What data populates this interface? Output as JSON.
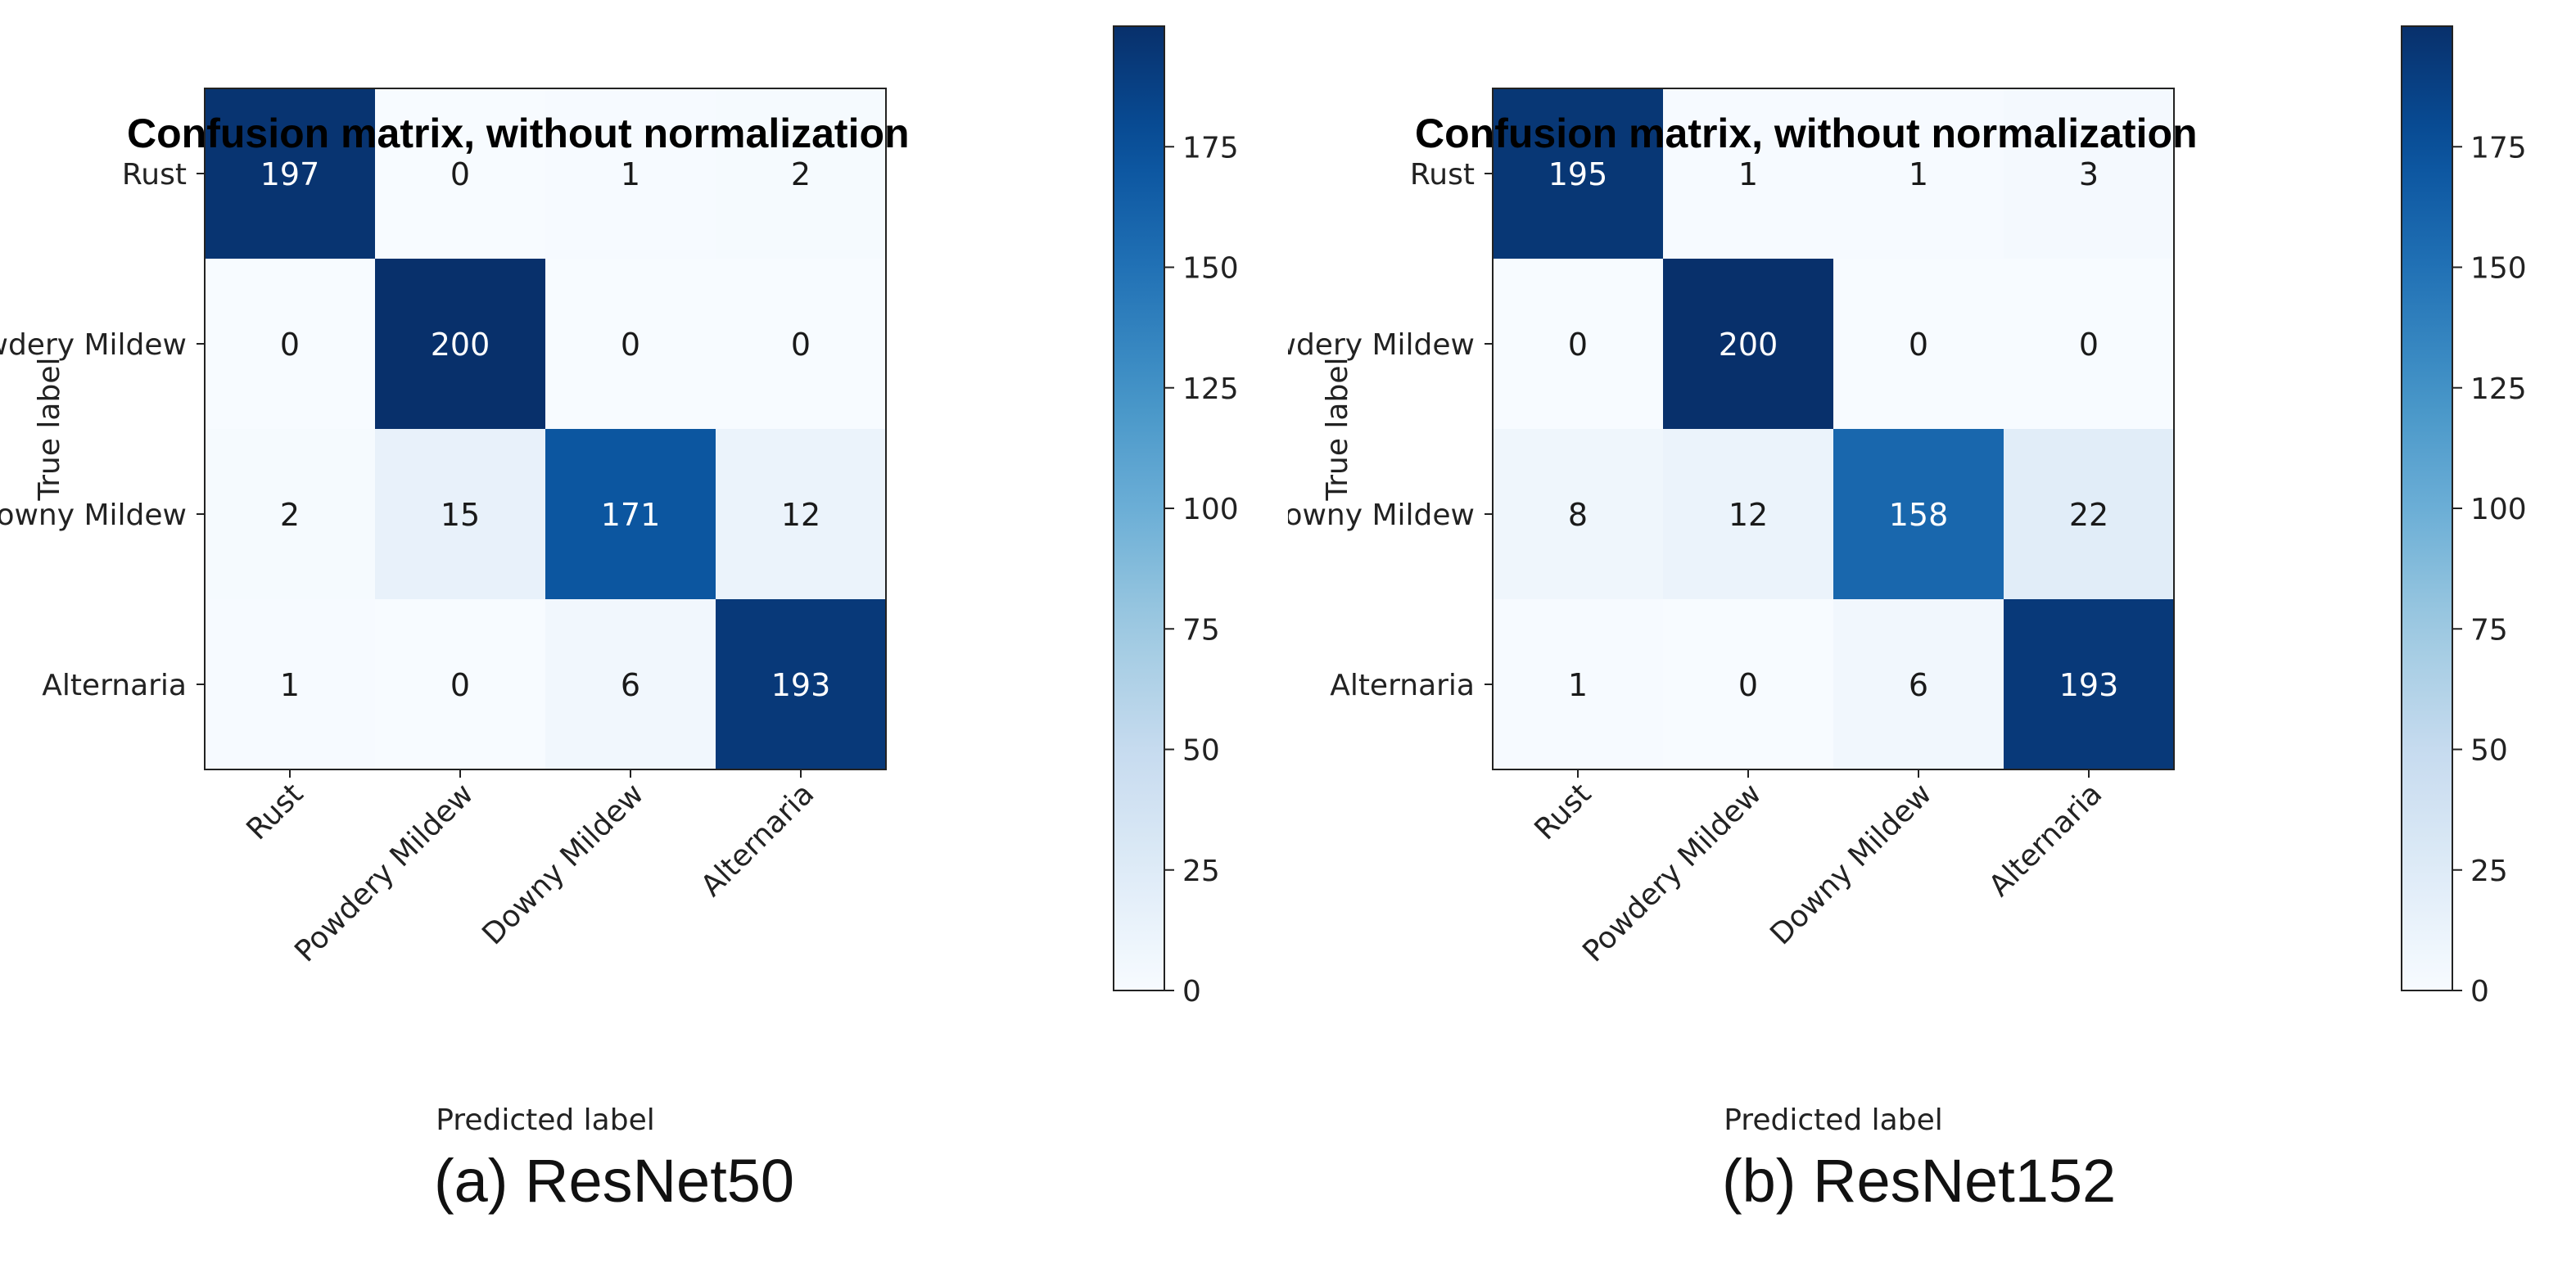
{
  "chart_data": [
    {
      "type": "heatmap",
      "title": "Confusion matrix, without normalization",
      "xlabel": "Predicted label",
      "ylabel": "True label",
      "caption": "(a) ResNet50",
      "x_categories": [
        "Rust",
        "Powdery Mildew",
        "Downy Mildew",
        "Alternaria"
      ],
      "y_categories": [
        "Rust",
        "Powdery Mildew",
        "Downy Mildew",
        "Alternaria"
      ],
      "matrix": [
        [
          197,
          0,
          1,
          2
        ],
        [
          0,
          200,
          0,
          0
        ],
        [
          2,
          15,
          171,
          12
        ],
        [
          1,
          0,
          6,
          193
        ]
      ],
      "colorbar": {
        "min": 0,
        "max": 200,
        "ticks": [
          0,
          25,
          50,
          75,
          100,
          125,
          150,
          175
        ]
      },
      "colormap": "Blues"
    },
    {
      "type": "heatmap",
      "title": "Confusion matrix, without normalization",
      "xlabel": "Predicted label",
      "ylabel": "True label",
      "caption": "(b) ResNet152",
      "x_categories": [
        "Rust",
        "Powdery Mildew",
        "Downy Mildew",
        "Alternaria"
      ],
      "y_categories": [
        "Rust",
        "Powdery Mildew",
        "Downy Mildew",
        "Alternaria"
      ],
      "matrix": [
        [
          195,
          1,
          1,
          3
        ],
        [
          0,
          200,
          0,
          0
        ],
        [
          8,
          12,
          158,
          22
        ],
        [
          1,
          0,
          6,
          193
        ]
      ],
      "colorbar": {
        "min": 0,
        "max": 200,
        "ticks": [
          0,
          25,
          50,
          75,
          100,
          125,
          150,
          175
        ]
      },
      "colormap": "Blues"
    }
  ]
}
